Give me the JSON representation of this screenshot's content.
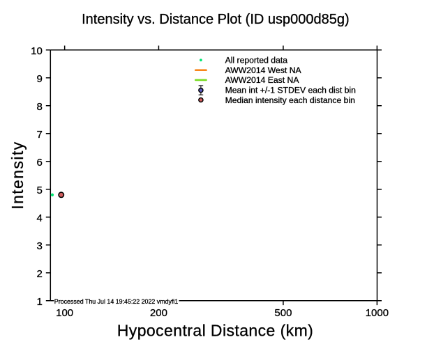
{
  "title": "Intensity vs. Distance Plot (ID usp000d85g)",
  "chart_data": {
    "type": "scatter",
    "title": "Intensity vs. Distance Plot (ID usp000d85g)",
    "event_id": "usp000d85g",
    "xlabel": "Hypocentral Distance (km)",
    "ylabel": "Intensity",
    "x_scale": "log",
    "xlim": [
      90,
      1000
    ],
    "ylim": [
      1,
      10
    ],
    "x_ticks": [
      "100",
      "200",
      "500",
      "1000"
    ],
    "y_ticks": [
      "10",
      "9",
      "8",
      "7",
      "6",
      "5",
      "4",
      "3",
      "2",
      "1"
    ],
    "grid": false,
    "legend_position": "top-center-inside",
    "series": [
      {
        "name": "All reported data",
        "marker": "small-dot",
        "color": "#00e673",
        "points": [
          {
            "x": 91.3,
            "y": 4.8
          }
        ]
      },
      {
        "name": "AWW2014 West NA",
        "marker": "thick-line",
        "color": "#f8861b",
        "points": []
      },
      {
        "name": "AWW2014 East NA",
        "marker": "thick-line",
        "color": "#7bdd28",
        "points": []
      },
      {
        "name": "Mean int +/-1 STDEV each dist bin",
        "marker": "circle-with-errorbar",
        "color": "#5b5bc0",
        "points": []
      },
      {
        "name": "Median intensity each distance bin",
        "marker": "circle",
        "color": "#d25f5f",
        "points": [
          {
            "x": 97.5,
            "y": 4.8
          }
        ]
      }
    ],
    "footnote": "Processed Thu Jul 14 19:45:22 2022 vmdyfi1"
  }
}
